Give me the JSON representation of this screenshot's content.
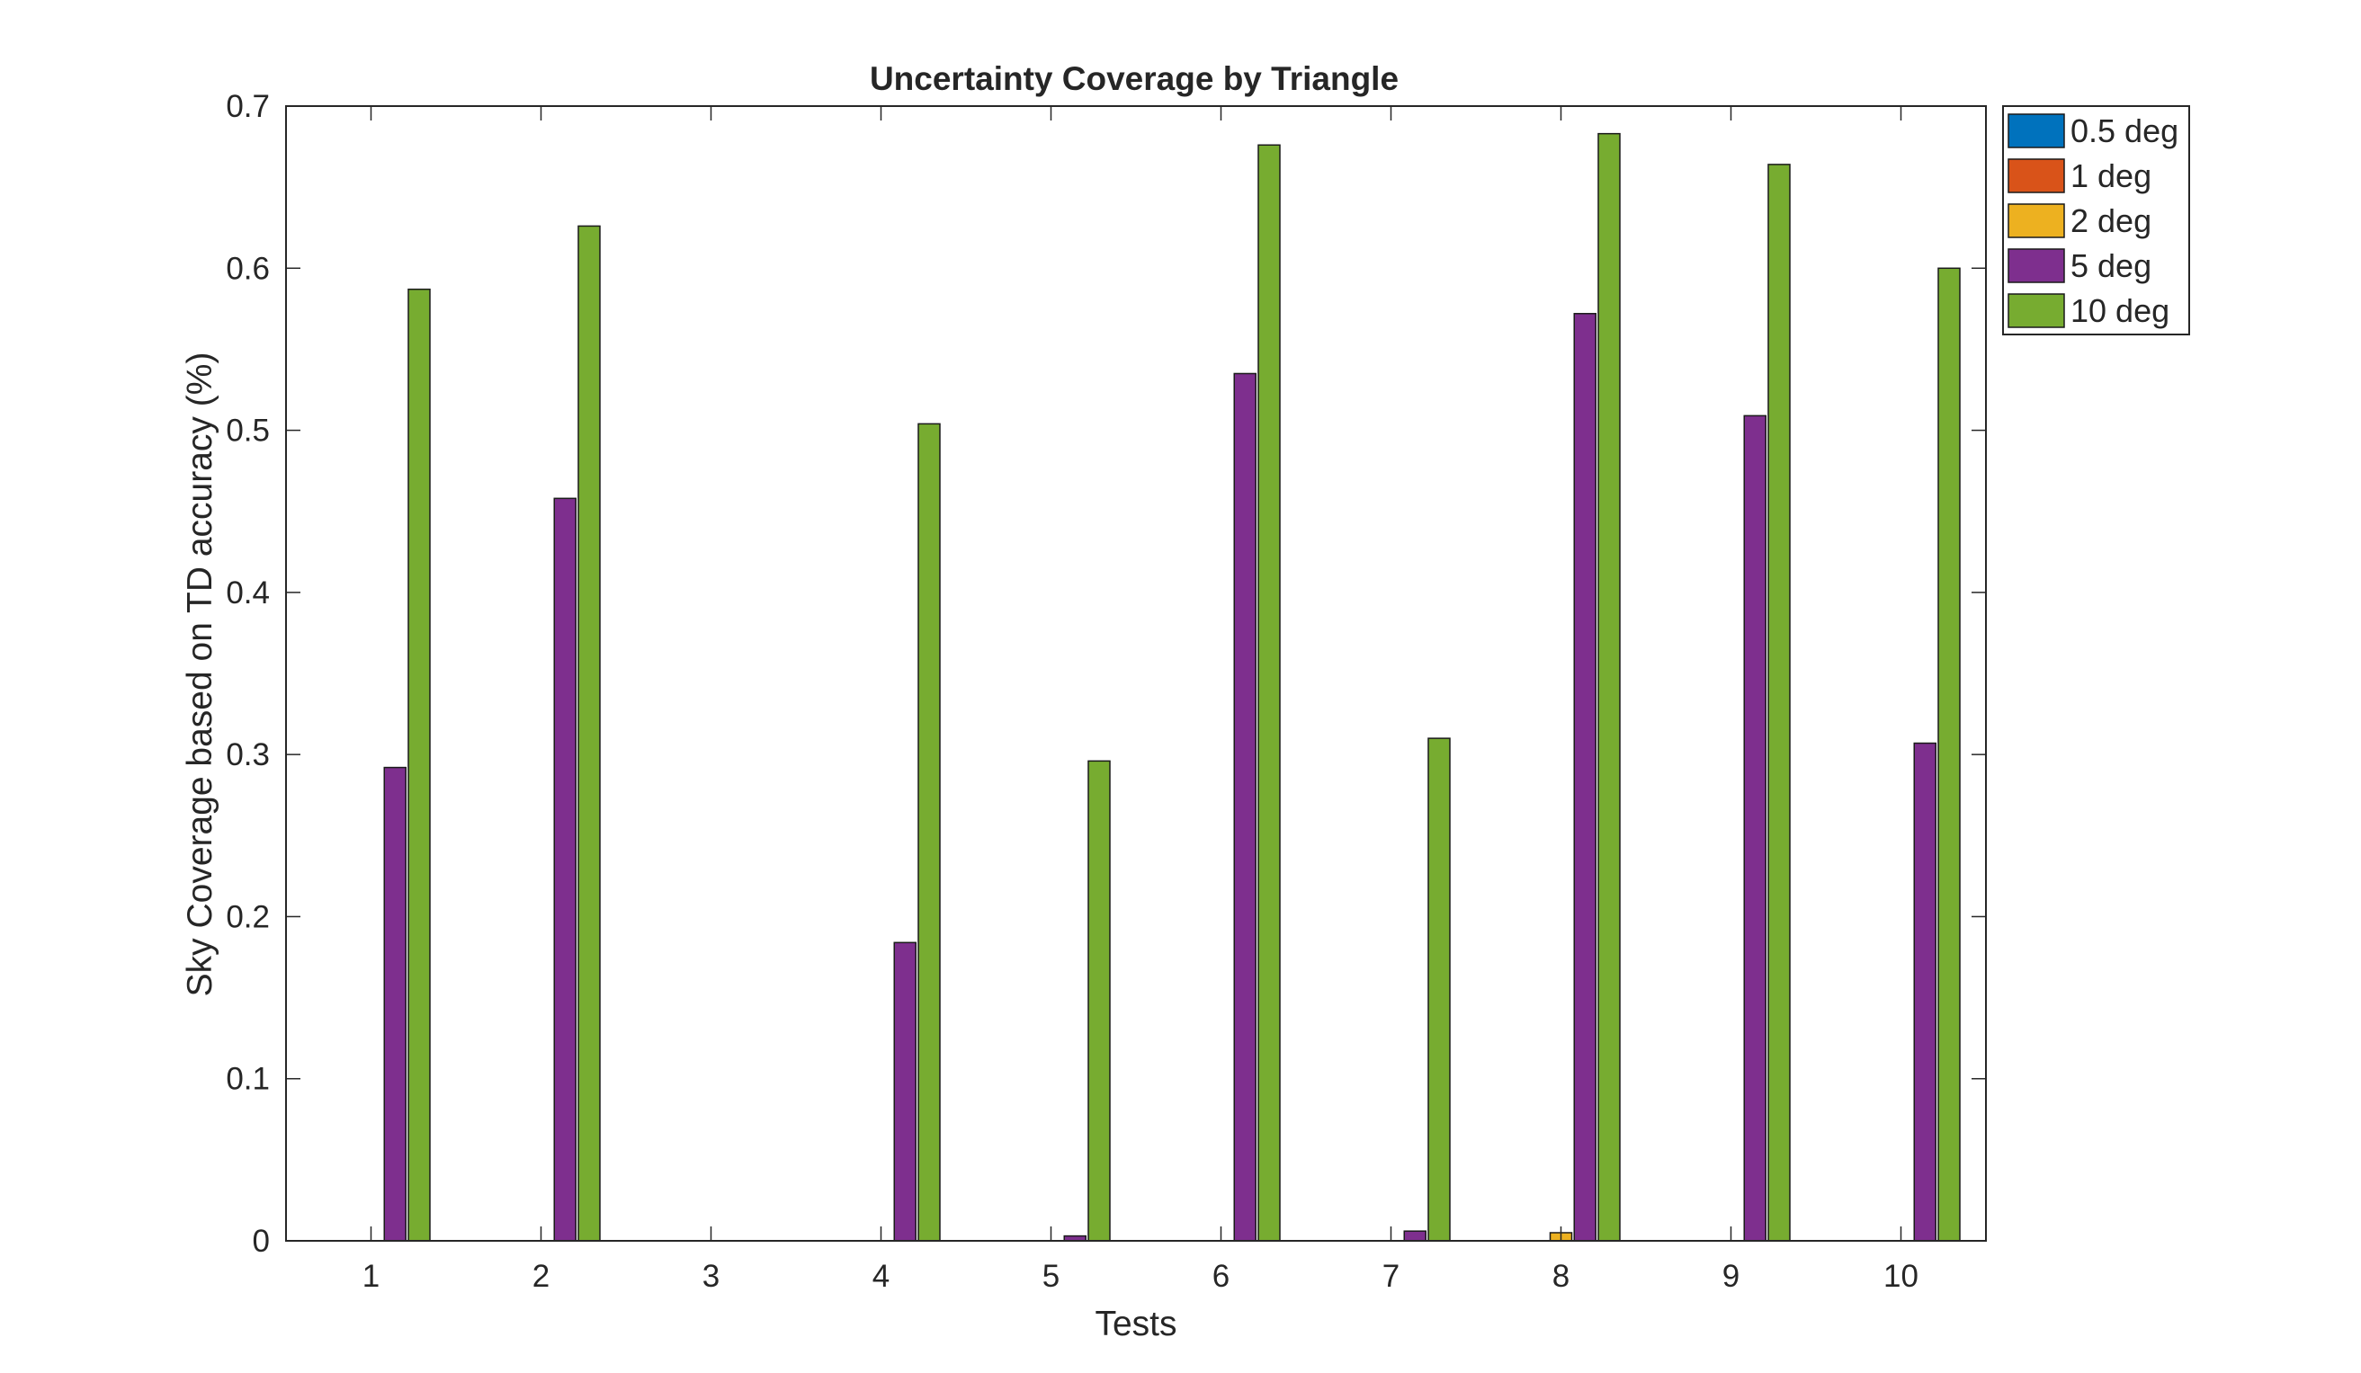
{
  "chart_data": {
    "type": "bar",
    "title": "Uncertainty Coverage by Triangle",
    "xlabel": "Tests",
    "ylabel": "Sky Coverage based on TD accuracy (%)",
    "categories": [
      "1",
      "2",
      "3",
      "4",
      "5",
      "6",
      "7",
      "8",
      "9",
      "10"
    ],
    "ylim": [
      0,
      0.7
    ],
    "yticks": [
      "0",
      "0.1",
      "0.2",
      "0.3",
      "0.4",
      "0.5",
      "0.6",
      "0.7"
    ],
    "grid": false,
    "legend": "outside-top-right",
    "series": [
      {
        "name": "0.5 deg",
        "color": "#0072BD",
        "values": [
          0,
          0,
          0,
          0,
          0,
          0,
          0,
          0,
          0,
          0
        ]
      },
      {
        "name": "1 deg",
        "color": "#D95319",
        "values": [
          0,
          0,
          0,
          0,
          0,
          0,
          0,
          0,
          0,
          0
        ]
      },
      {
        "name": "2 deg",
        "color": "#EDB120",
        "values": [
          0,
          0,
          0,
          0,
          0,
          0,
          0,
          0.005,
          0,
          0
        ]
      },
      {
        "name": "5 deg",
        "color": "#7E2F8E",
        "values": [
          0.292,
          0.458,
          0,
          0.184,
          0.003,
          0.535,
          0.006,
          0.572,
          0.509,
          0.307
        ]
      },
      {
        "name": "10 deg",
        "color": "#77AC30",
        "values": [
          0.587,
          0.626,
          0,
          0.504,
          0.296,
          0.676,
          0.31,
          0.683,
          0.664,
          0.6
        ]
      }
    ]
  }
}
